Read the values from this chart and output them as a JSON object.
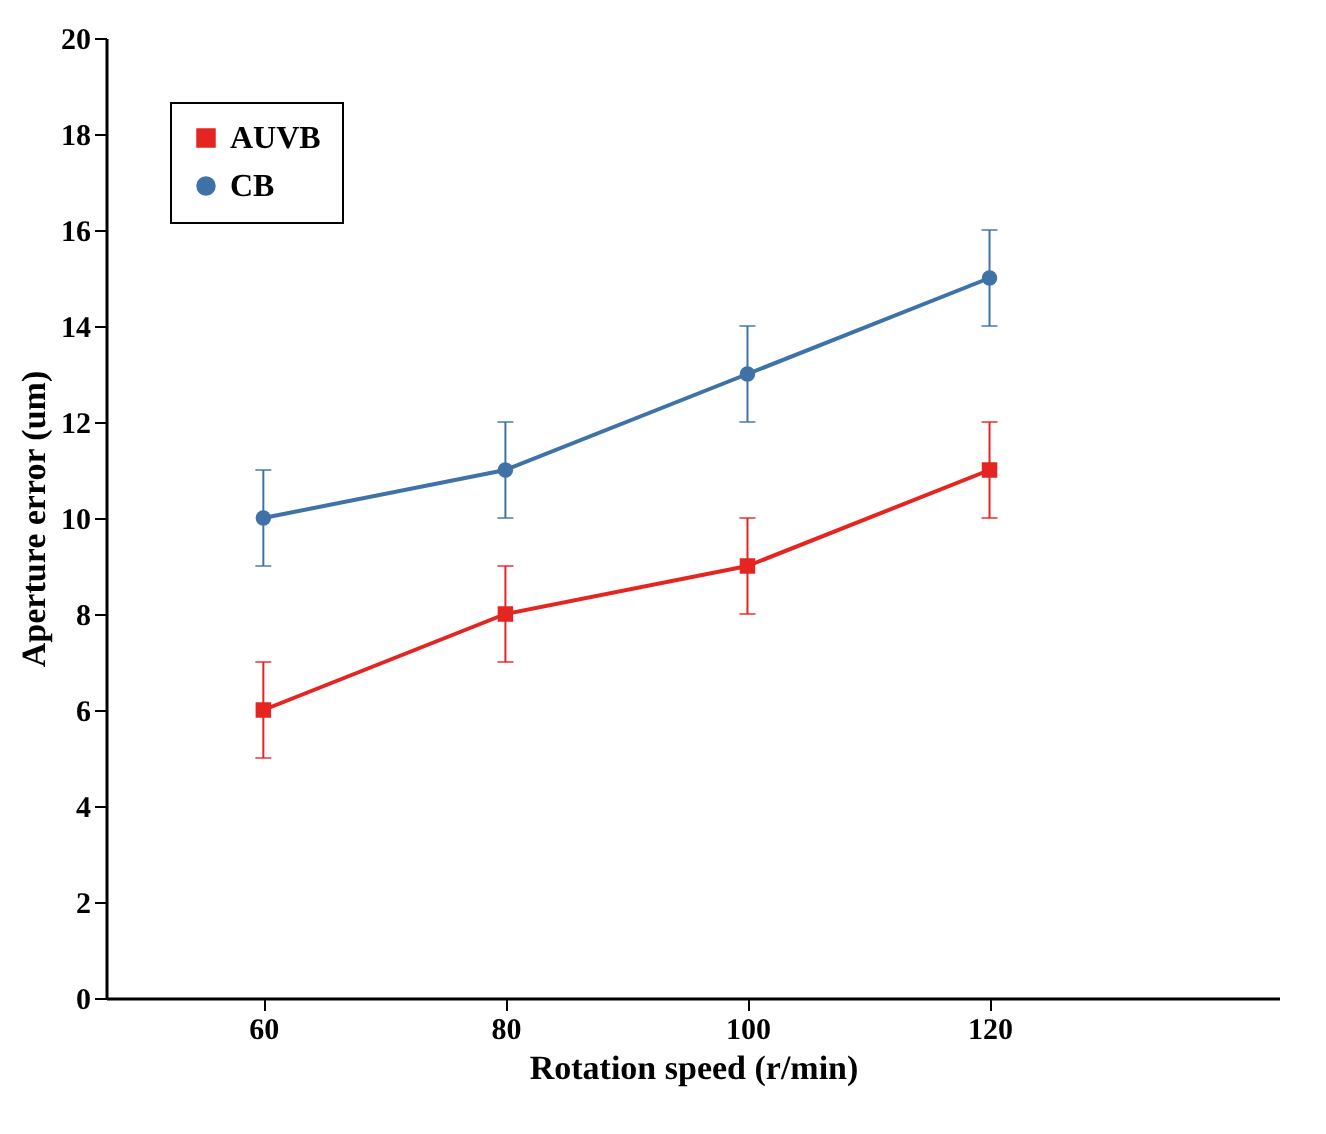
{
  "chart_data": {
    "type": "line",
    "xlabel": "Rotation speed (r/min)",
    "ylabel": "Aperture error (um)",
    "x": [
      60,
      80,
      100,
      120
    ],
    "xlim": [
      47,
      144
    ],
    "xticks": [
      60,
      80,
      100,
      120
    ],
    "ylim": [
      0,
      20
    ],
    "yticks": [
      0,
      2,
      4,
      6,
      8,
      10,
      12,
      14,
      16,
      18,
      20
    ],
    "series": [
      {
        "name": "AUVB",
        "color": "#e52521",
        "marker": "square",
        "values": [
          6,
          8,
          9,
          11
        ],
        "errors": [
          1,
          1,
          1,
          1
        ]
      },
      {
        "name": "CB",
        "color": "#3f72a6",
        "marker": "circle",
        "values": [
          10,
          11,
          13,
          15
        ],
        "errors": [
          1,
          1,
          1,
          1
        ]
      }
    ],
    "legend": "top left",
    "grid": false,
    "line_style": "solid"
  }
}
